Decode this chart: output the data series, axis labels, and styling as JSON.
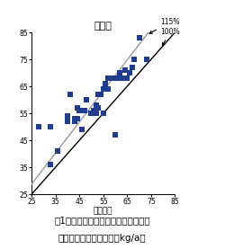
{
  "title": "玄米重",
  "xlabel": "対照品種",
  "xlim": [
    25,
    85
  ],
  "ylim": [
    25,
    85
  ],
  "xticks": [
    25,
    35,
    45,
    55,
    65,
    75,
    85
  ],
  "yticks": [
    25,
    35,
    45,
    55,
    65,
    75,
    85
  ],
  "scatter_x": [
    28,
    33,
    33,
    36,
    40,
    40,
    41,
    43,
    43,
    44,
    44,
    45,
    46,
    47,
    48,
    50,
    51,
    52,
    52,
    53,
    53,
    54,
    55,
    55,
    56,
    57,
    57,
    58,
    59,
    60,
    61,
    62,
    63,
    64,
    65,
    66,
    67,
    68,
    70,
    73
  ],
  "scatter_y": [
    50,
    36,
    50,
    41,
    52,
    54,
    62,
    52,
    53,
    53,
    57,
    56,
    49,
    56,
    60,
    55,
    56,
    55,
    58,
    57,
    62,
    62,
    55,
    64,
    66,
    64,
    68,
    68,
    68,
    47,
    68,
    70,
    68,
    71,
    68,
    70,
    72,
    75,
    83,
    75
  ],
  "dot_color": "#1f3d8c",
  "line_100_color": "#000000",
  "line_115_color": "#999999",
  "label_115": "115%",
  "label_100": "100%",
  "caption_line1": "図1　奫励品種決定基本調査における",
  "caption_line2": "あきだわらの玄米収量（kg/a）"
}
